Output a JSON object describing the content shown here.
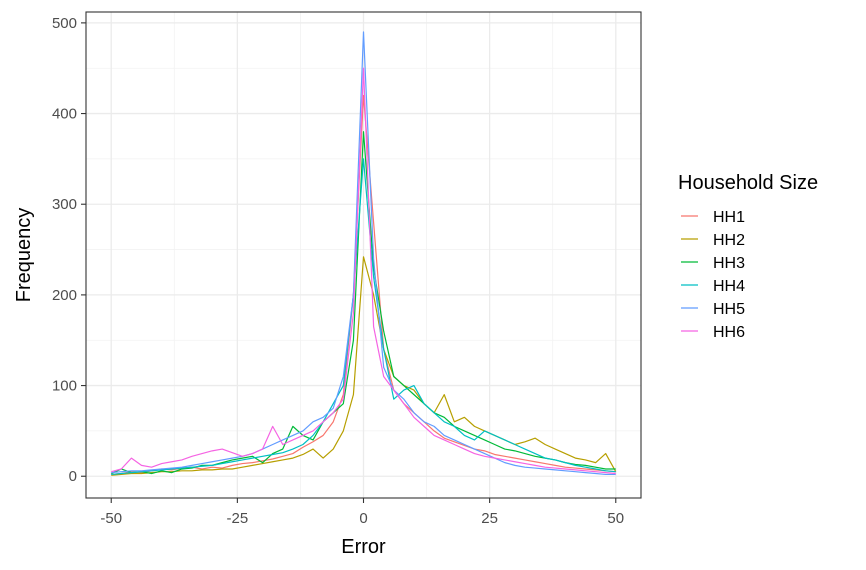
{
  "chart_data": {
    "type": "line",
    "xlabel": "Error",
    "ylabel": "Frequency",
    "xlim": [
      -55,
      55
    ],
    "ylim": [
      -24,
      512
    ],
    "x_ticks": [
      -50,
      -25,
      0,
      25,
      50
    ],
    "x_tick_labels": [
      "-50",
      "-25",
      "0",
      "25",
      "50"
    ],
    "y_ticks": [
      0,
      100,
      200,
      300,
      400,
      500
    ],
    "y_tick_labels": [
      "0",
      "100",
      "200",
      "300",
      "400",
      "500"
    ],
    "grid": true,
    "legend": {
      "title": "Household Size",
      "placement": "right"
    },
    "x": [
      -50,
      -48,
      -46,
      -44,
      -42,
      -40,
      -38,
      -36,
      -34,
      -32,
      -30,
      -28,
      -26,
      -24,
      -22,
      -20,
      -18,
      -16,
      -14,
      -12,
      -10,
      -8,
      -6,
      -4,
      -2,
      0,
      2,
      4,
      6,
      8,
      10,
      12,
      14,
      16,
      18,
      20,
      22,
      24,
      26,
      28,
      30,
      32,
      34,
      36,
      38,
      40,
      42,
      44,
      46,
      48,
      50
    ],
    "series": [
      {
        "name": "HH1",
        "color": "#F8766D",
        "values": [
          2,
          3,
          5,
          4,
          6,
          8,
          7,
          9,
          10,
          8,
          10,
          9,
          12,
          14,
          15,
          17,
          19,
          22,
          25,
          32,
          38,
          45,
          60,
          90,
          200,
          420,
          280,
          140,
          95,
          80,
          70,
          60,
          50,
          42,
          38,
          34,
          30,
          28,
          24,
          22,
          20,
          18,
          16,
          14,
          12,
          10,
          9,
          8,
          7,
          6,
          5
        ]
      },
      {
        "name": "HH2",
        "color": "#B79F00",
        "values": [
          1,
          2,
          3,
          3,
          4,
          5,
          5,
          6,
          6,
          7,
          7,
          8,
          8,
          10,
          12,
          14,
          16,
          18,
          20,
          24,
          30,
          20,
          30,
          50,
          90,
          242,
          200,
          140,
          110,
          100,
          95,
          80,
          70,
          90,
          60,
          65,
          55,
          50,
          45,
          40,
          35,
          38,
          42,
          35,
          30,
          25,
          20,
          18,
          15,
          25,
          5
        ]
      },
      {
        "name": "HH3",
        "color": "#00BA38",
        "values": [
          3,
          8,
          4,
          5,
          3,
          6,
          4,
          8,
          9,
          12,
          12,
          15,
          18,
          20,
          22,
          15,
          25,
          30,
          55,
          45,
          40,
          60,
          70,
          80,
          150,
          380,
          230,
          160,
          110,
          100,
          90,
          80,
          70,
          65,
          55,
          50,
          45,
          40,
          35,
          30,
          28,
          25,
          22,
          20,
          18,
          15,
          13,
          12,
          10,
          8,
          8
        ]
      },
      {
        "name": "HH4",
        "color": "#00BFC4",
        "values": [
          2,
          3,
          4,
          5,
          6,
          7,
          8,
          9,
          10,
          11,
          12,
          14,
          16,
          18,
          20,
          22,
          24,
          26,
          30,
          35,
          45,
          60,
          80,
          100,
          200,
          350,
          220,
          140,
          85,
          95,
          100,
          80,
          70,
          60,
          55,
          45,
          40,
          50,
          45,
          40,
          35,
          30,
          25,
          20,
          18,
          15,
          12,
          10,
          8,
          6,
          5
        ]
      },
      {
        "name": "HH5",
        "color": "#619CFF",
        "values": [
          4,
          5,
          6,
          6,
          7,
          8,
          9,
          10,
          12,
          14,
          16,
          18,
          20,
          22,
          25,
          30,
          35,
          40,
          45,
          50,
          60,
          65,
          75,
          110,
          200,
          490,
          240,
          120,
          95,
          85,
          70,
          60,
          55,
          45,
          40,
          35,
          30,
          25,
          20,
          15,
          12,
          10,
          9,
          8,
          7,
          6,
          5,
          4,
          3,
          2,
          2
        ]
      },
      {
        "name": "HH6",
        "color": "#F564E3",
        "values": [
          5,
          8,
          20,
          12,
          10,
          14,
          16,
          18,
          22,
          25,
          28,
          30,
          26,
          22,
          25,
          30,
          55,
          35,
          40,
          45,
          50,
          60,
          70,
          85,
          180,
          450,
          165,
          110,
          95,
          80,
          65,
          55,
          45,
          40,
          35,
          30,
          25,
          22,
          20,
          18,
          16,
          14,
          12,
          10,
          9,
          8,
          7,
          6,
          5,
          4,
          3
        ]
      }
    ]
  }
}
